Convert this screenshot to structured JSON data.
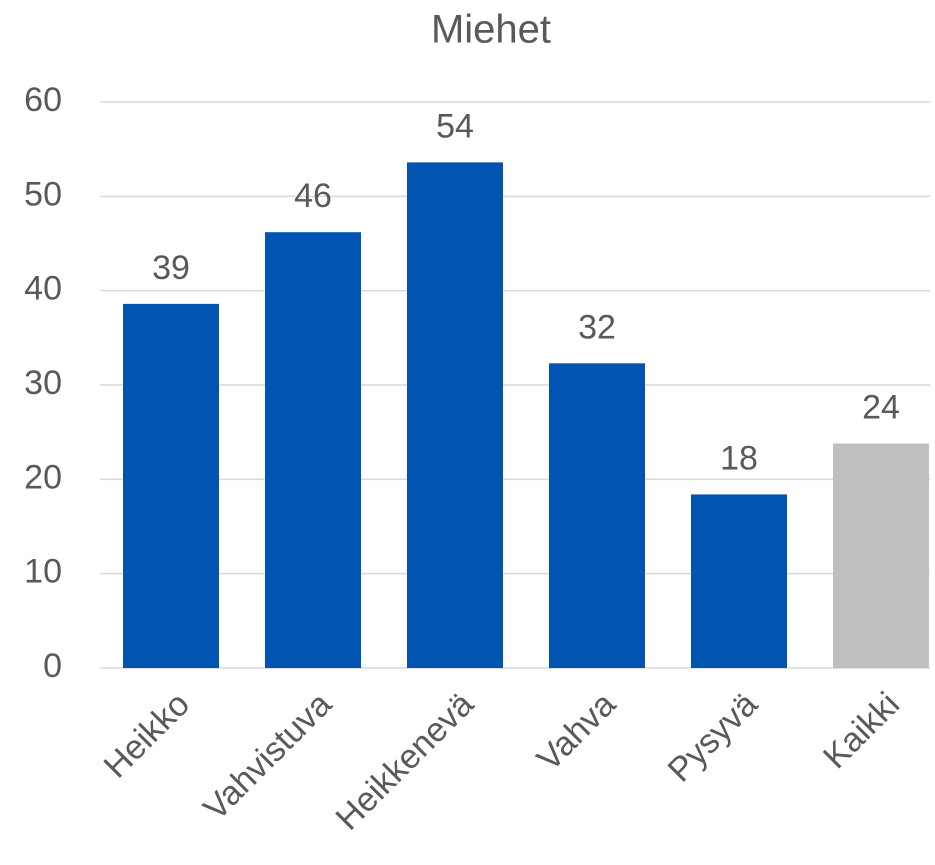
{
  "chart_data": {
    "type": "bar",
    "title": "Miehet",
    "categories": [
      "Heikko",
      "Vahvistuva",
      "Heikkenevä",
      "Vahva",
      "Pysyvä",
      "Kaikki"
    ],
    "values": [
      38.6,
      46.2,
      53.6,
      32.3,
      18.4,
      23.8
    ],
    "value_labels": [
      "39",
      "46",
      "54",
      "32",
      "18",
      "24"
    ],
    "colors": [
      "#0254b3",
      "#0254b3",
      "#0254b3",
      "#0254b3",
      "#0254b3",
      "#bfbfbf"
    ],
    "ylim": [
      0,
      60
    ],
    "yticks": [
      0,
      10,
      20,
      30,
      40,
      50,
      60
    ],
    "grid": true
  }
}
